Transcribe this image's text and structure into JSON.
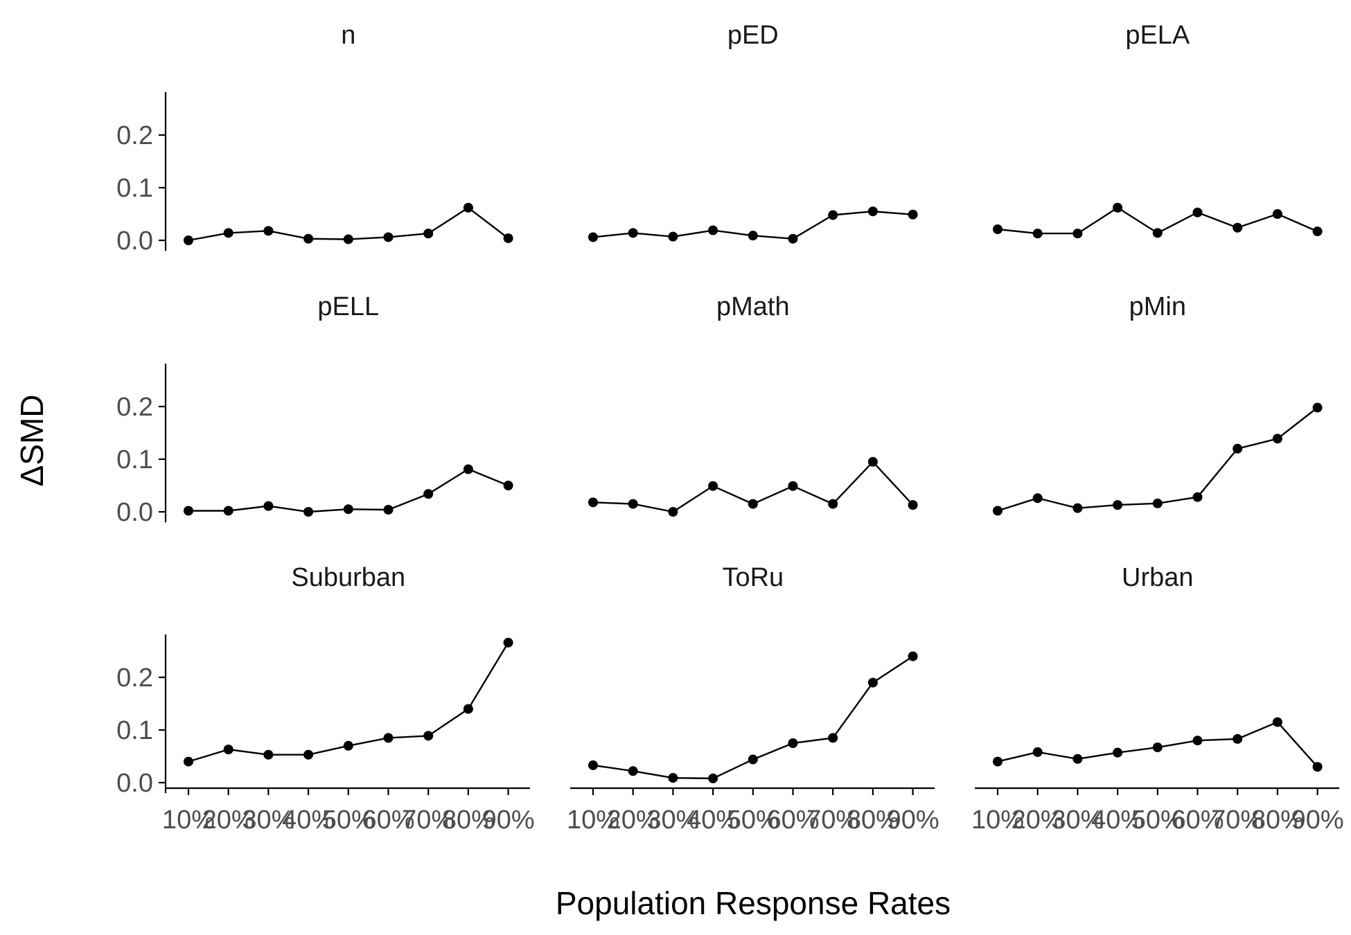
{
  "chart_data": {
    "type": "line",
    "xlabel": "Population Response Rates",
    "ylabel": "ΔSMD",
    "categories": [
      "10%",
      "20%",
      "30%",
      "40%",
      "50%",
      "60%",
      "70%",
      "80%",
      "90%"
    ],
    "ylim": [
      -0.02,
      0.28
    ],
    "yticks": [
      0.0,
      0.1,
      0.2
    ],
    "ytick_labels": [
      "0.0",
      "0.1",
      "0.2"
    ],
    "grid": false,
    "legend": "none",
    "line_color": "#000000",
    "panels": [
      {
        "name": "n",
        "values": [
          0.0,
          0.014,
          0.018,
          0.003,
          0.002,
          0.006,
          0.013,
          0.062,
          0.004
        ]
      },
      {
        "name": "pED",
        "values": [
          0.006,
          0.014,
          0.007,
          0.019,
          0.009,
          0.003,
          0.048,
          0.055,
          0.049
        ]
      },
      {
        "name": "pELA",
        "values": [
          0.021,
          0.013,
          0.013,
          0.062,
          0.014,
          0.053,
          0.024,
          0.05,
          0.017
        ]
      },
      {
        "name": "pELL",
        "values": [
          0.002,
          0.002,
          0.011,
          0.0,
          0.005,
          0.004,
          0.034,
          0.081,
          0.05
        ]
      },
      {
        "name": "pMath",
        "values": [
          0.018,
          0.015,
          0.0,
          0.049,
          0.015,
          0.049,
          0.015,
          0.095,
          0.013
        ]
      },
      {
        "name": "pMin",
        "values": [
          0.002,
          0.026,
          0.007,
          0.013,
          0.016,
          0.028,
          0.12,
          0.139,
          0.198
        ]
      },
      {
        "name": "Suburban",
        "values": [
          0.04,
          0.063,
          0.053,
          0.053,
          0.07,
          0.085,
          0.089,
          0.14,
          0.266
        ]
      },
      {
        "name": "ToRu",
        "values": [
          0.033,
          0.022,
          0.009,
          0.008,
          0.044,
          0.075,
          0.085,
          0.19,
          0.24
        ]
      },
      {
        "name": "Urban",
        "values": [
          0.04,
          0.058,
          0.045,
          0.057,
          0.067,
          0.08,
          0.083,
          0.115,
          0.03
        ]
      }
    ]
  }
}
